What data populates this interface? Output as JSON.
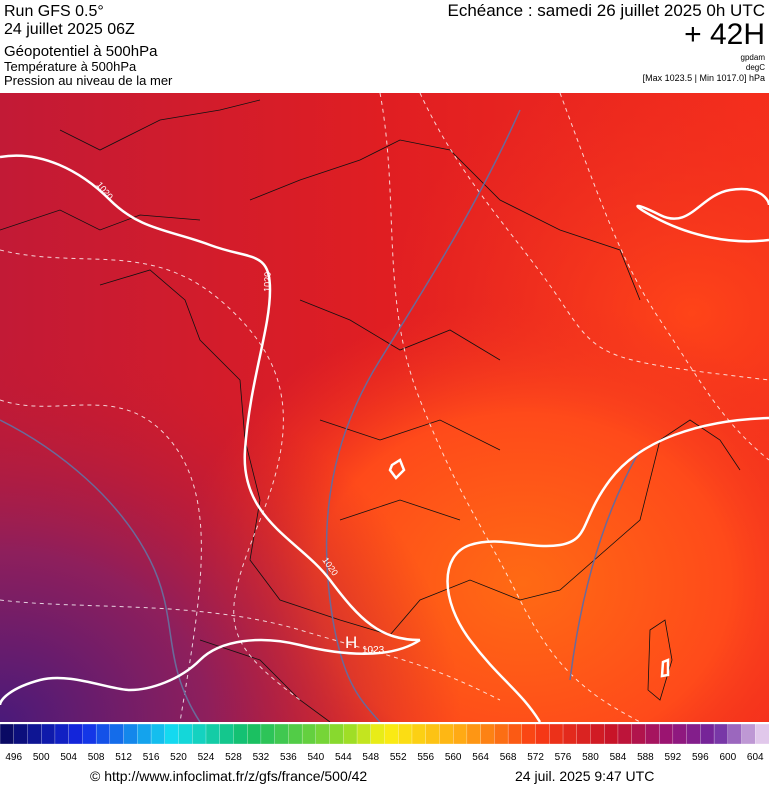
{
  "header": {
    "run": "Run GFS 0.5°",
    "run_date": "24 juillet 2025 06Z",
    "fields": [
      "Géopotentiel à 500hPa",
      "Température à 500hPa",
      "Pression au niveau de la mer"
    ],
    "echeance": "Echéance : samedi 26 juillet 2025 0h UTC",
    "lead": "+ 42H",
    "units": [
      "gpdam",
      "degC"
    ],
    "pressure_range": "[Max 1023.5 | Min 1017.0] hPa"
  },
  "map": {
    "contour_labels": [
      "1020",
      "1020",
      "1020"
    ],
    "high_label": "H",
    "high_value": "1023"
  },
  "colorbar": {
    "labels": [
      496,
      500,
      504,
      508,
      512,
      516,
      520,
      524,
      528,
      532,
      536,
      540,
      544,
      548,
      552,
      556,
      560,
      564,
      568,
      572,
      576,
      580,
      584,
      588,
      592,
      596,
      600,
      604
    ]
  },
  "footer": {
    "source": "© http://www.infoclimat.fr/z/gfs/france/500/42",
    "timestamp": "24 juil. 2025  9:47 UTC"
  }
}
